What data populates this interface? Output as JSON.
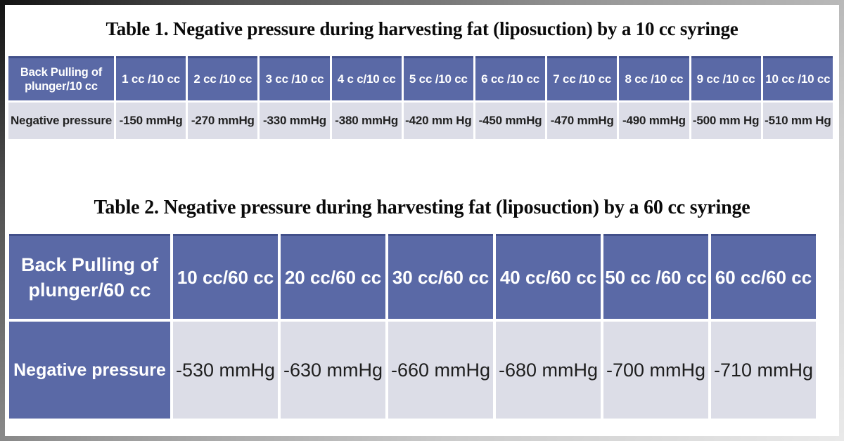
{
  "page": {
    "background": "#ffffff",
    "header_blue": "#5a69a6",
    "header_top_border": "#42508a",
    "cell_light": "#dcdde7",
    "separator_white": "#ffffff"
  },
  "table1": {
    "title": "Table 1. Negative pressure during harvesting fat (liposuction) by a 10 cc syringe",
    "corner_line1": "Back Pulling of",
    "corner_line2": "plunger/10 cc",
    "columns": [
      "1 cc /10 cc",
      "2 cc /10 cc",
      "3 cc /10 cc",
      "4 c c/10 cc",
      "5 cc /10 cc",
      "6 cc /10 cc",
      "7 cc /10 cc",
      "8 cc /10 cc",
      "9 cc /10 cc",
      "10 cc /10 cc"
    ],
    "row_label": "Negative pressure",
    "values": [
      "-150 mmHg",
      "-270 mmHg",
      "-330 mmHg",
      "-380 mmHg",
      "-420 mm Hg",
      "-450 mmHg",
      "-470 mmHg",
      "-490 mmHg",
      "-500 mm Hg",
      "-510 mm Hg"
    ]
  },
  "table2": {
    "title": "Table 2. Negative pressure during harvesting fat (liposuction) by a 60 cc syringe",
    "corner_line1": "Back Pulling of",
    "corner_line2": "plunger/60 cc",
    "columns": [
      "10 cc/60 cc",
      "20 cc/60 cc",
      "30 cc/60 cc",
      "40 cc/60 cc",
      "50 cc /60 cc",
      "60 cc/60 cc"
    ],
    "row_label": "Negative pressure",
    "values": [
      "-530 mmHg",
      "-630 mmHg",
      "-660 mmHg",
      "-680 mmHg",
      "-700 mmHg",
      "-710 mmHg"
    ]
  }
}
